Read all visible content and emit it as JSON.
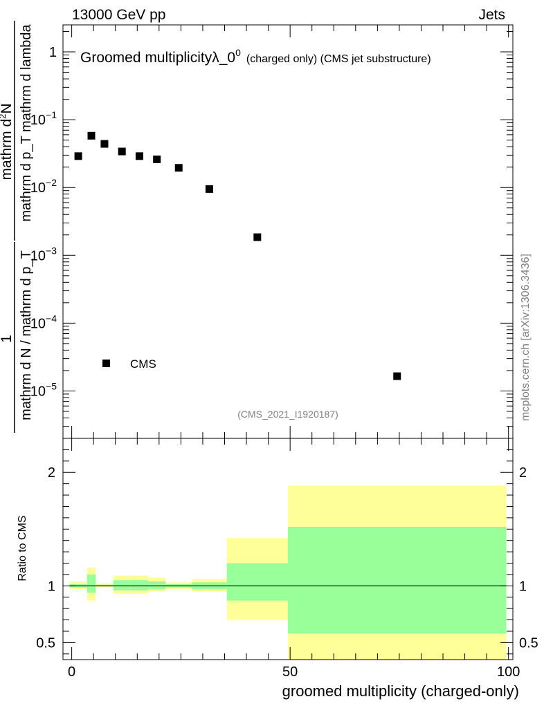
{
  "header": {
    "left": "13000 GeV pp",
    "right": "Jets"
  },
  "side_label": "mcplots.cern.ch [arXiv:1306.3436]",
  "analysis_id": "(CMS_2021_I1920187)",
  "chart_data": [
    {
      "type": "scatter",
      "title": "Groomed multiplicity",
      "title_symbol": "λ_0",
      "title_superscript": "0",
      "title_suffix": "(charged only) (CMS jet substructure)",
      "ylabel_numerator": "mathrm d",
      "ylabel_numerator_sup": "2",
      "ylabel_numerator_end": "N",
      "ylabel_denominator": "mathrm d p_T mathrm d lambda",
      "ylabel_prefactor_num": "1",
      "ylabel_prefactor_den": "mathrm d N / mathrm d p_T",
      "yscale": "log",
      "ylim": [
        2e-06,
        2.5
      ],
      "xlim": [
        -2,
        101
      ],
      "y_ticks": [
        {
          "value": 1,
          "label": "1"
        },
        {
          "value": 0.1,
          "base": "10",
          "exp": "−1"
        },
        {
          "value": 0.01,
          "base": "10",
          "exp": "−2"
        },
        {
          "value": 0.001,
          "base": "10",
          "exp": "−3"
        },
        {
          "value": 0.0001,
          "base": "10",
          "exp": "−4"
        },
        {
          "value": 1e-05,
          "base": "10",
          "exp": "−5"
        }
      ],
      "series": [
        {
          "name": "CMS",
          "color": "#000000",
          "points": [
            {
              "x": 1.5,
              "y": 0.029
            },
            {
              "x": 4.5,
              "y": 0.058
            },
            {
              "x": 7.5,
              "y": 0.044
            },
            {
              "x": 11.5,
              "y": 0.034
            },
            {
              "x": 15.5,
              "y": 0.029
            },
            {
              "x": 19.5,
              "y": 0.026
            },
            {
              "x": 24.5,
              "y": 0.0195
            },
            {
              "x": 31.5,
              "y": 0.0095
            },
            {
              "x": 42.5,
              "y": 0.00185
            },
            {
              "x": 74.5,
              "y": 1.65e-05
            }
          ]
        }
      ],
      "legend": {
        "position": "bottom-left",
        "label": "CMS"
      }
    },
    {
      "type": "area",
      "ylabel": "Ratio to CMS",
      "xlabel": "groomed multiplicity (charged-only)",
      "ylim": [
        0.35,
        2.3
      ],
      "xlim": [
        -2,
        101
      ],
      "x_ticks": [
        0,
        50,
        100
      ],
      "y_ticks": [
        0.5,
        1,
        2
      ],
      "reference_line": 1,
      "bands": [
        {
          "x0": -0.5,
          "x1": 3.5,
          "stat_lo": 0.985,
          "stat_hi": 1.015,
          "tot_lo": 0.97,
          "tot_hi": 1.04
        },
        {
          "x0": 3.5,
          "x1": 5.5,
          "stat_lo": 0.94,
          "stat_hi": 1.1,
          "tot_lo": 0.87,
          "tot_hi": 1.16
        },
        {
          "x0": 5.5,
          "x1": 9.5,
          "stat_lo": 0.995,
          "stat_hi": 1.01,
          "tot_lo": 0.99,
          "tot_hi": 1.02
        },
        {
          "x0": 9.5,
          "x1": 13.5,
          "stat_lo": 0.96,
          "stat_hi": 1.05,
          "tot_lo": 0.93,
          "tot_hi": 1.09
        },
        {
          "x0": 13.5,
          "x1": 17.5,
          "stat_lo": 0.96,
          "stat_hi": 1.05,
          "tot_lo": 0.93,
          "tot_hi": 1.09
        },
        {
          "x0": 17.5,
          "x1": 21.5,
          "stat_lo": 0.97,
          "stat_hi": 1.04,
          "tot_lo": 0.95,
          "tot_hi": 1.07
        },
        {
          "x0": 21.5,
          "x1": 27.5,
          "stat_lo": 0.985,
          "stat_hi": 1.015,
          "tot_lo": 0.97,
          "tot_hi": 1.03
        },
        {
          "x0": 27.5,
          "x1": 35.5,
          "stat_lo": 0.97,
          "stat_hi": 1.03,
          "tot_lo": 0.95,
          "tot_hi": 1.06
        },
        {
          "x0": 35.5,
          "x1": 49.5,
          "stat_lo": 0.87,
          "stat_hi": 1.2,
          "tot_lo": 0.7,
          "tot_hi": 1.42
        },
        {
          "x0": 49.5,
          "x1": 99.5,
          "stat_lo": 0.58,
          "stat_hi": 1.52,
          "tot_lo": 0.35,
          "tot_hi": 1.88
        }
      ],
      "colors": {
        "stat": "#99ff99",
        "total": "#ffff99"
      }
    }
  ]
}
